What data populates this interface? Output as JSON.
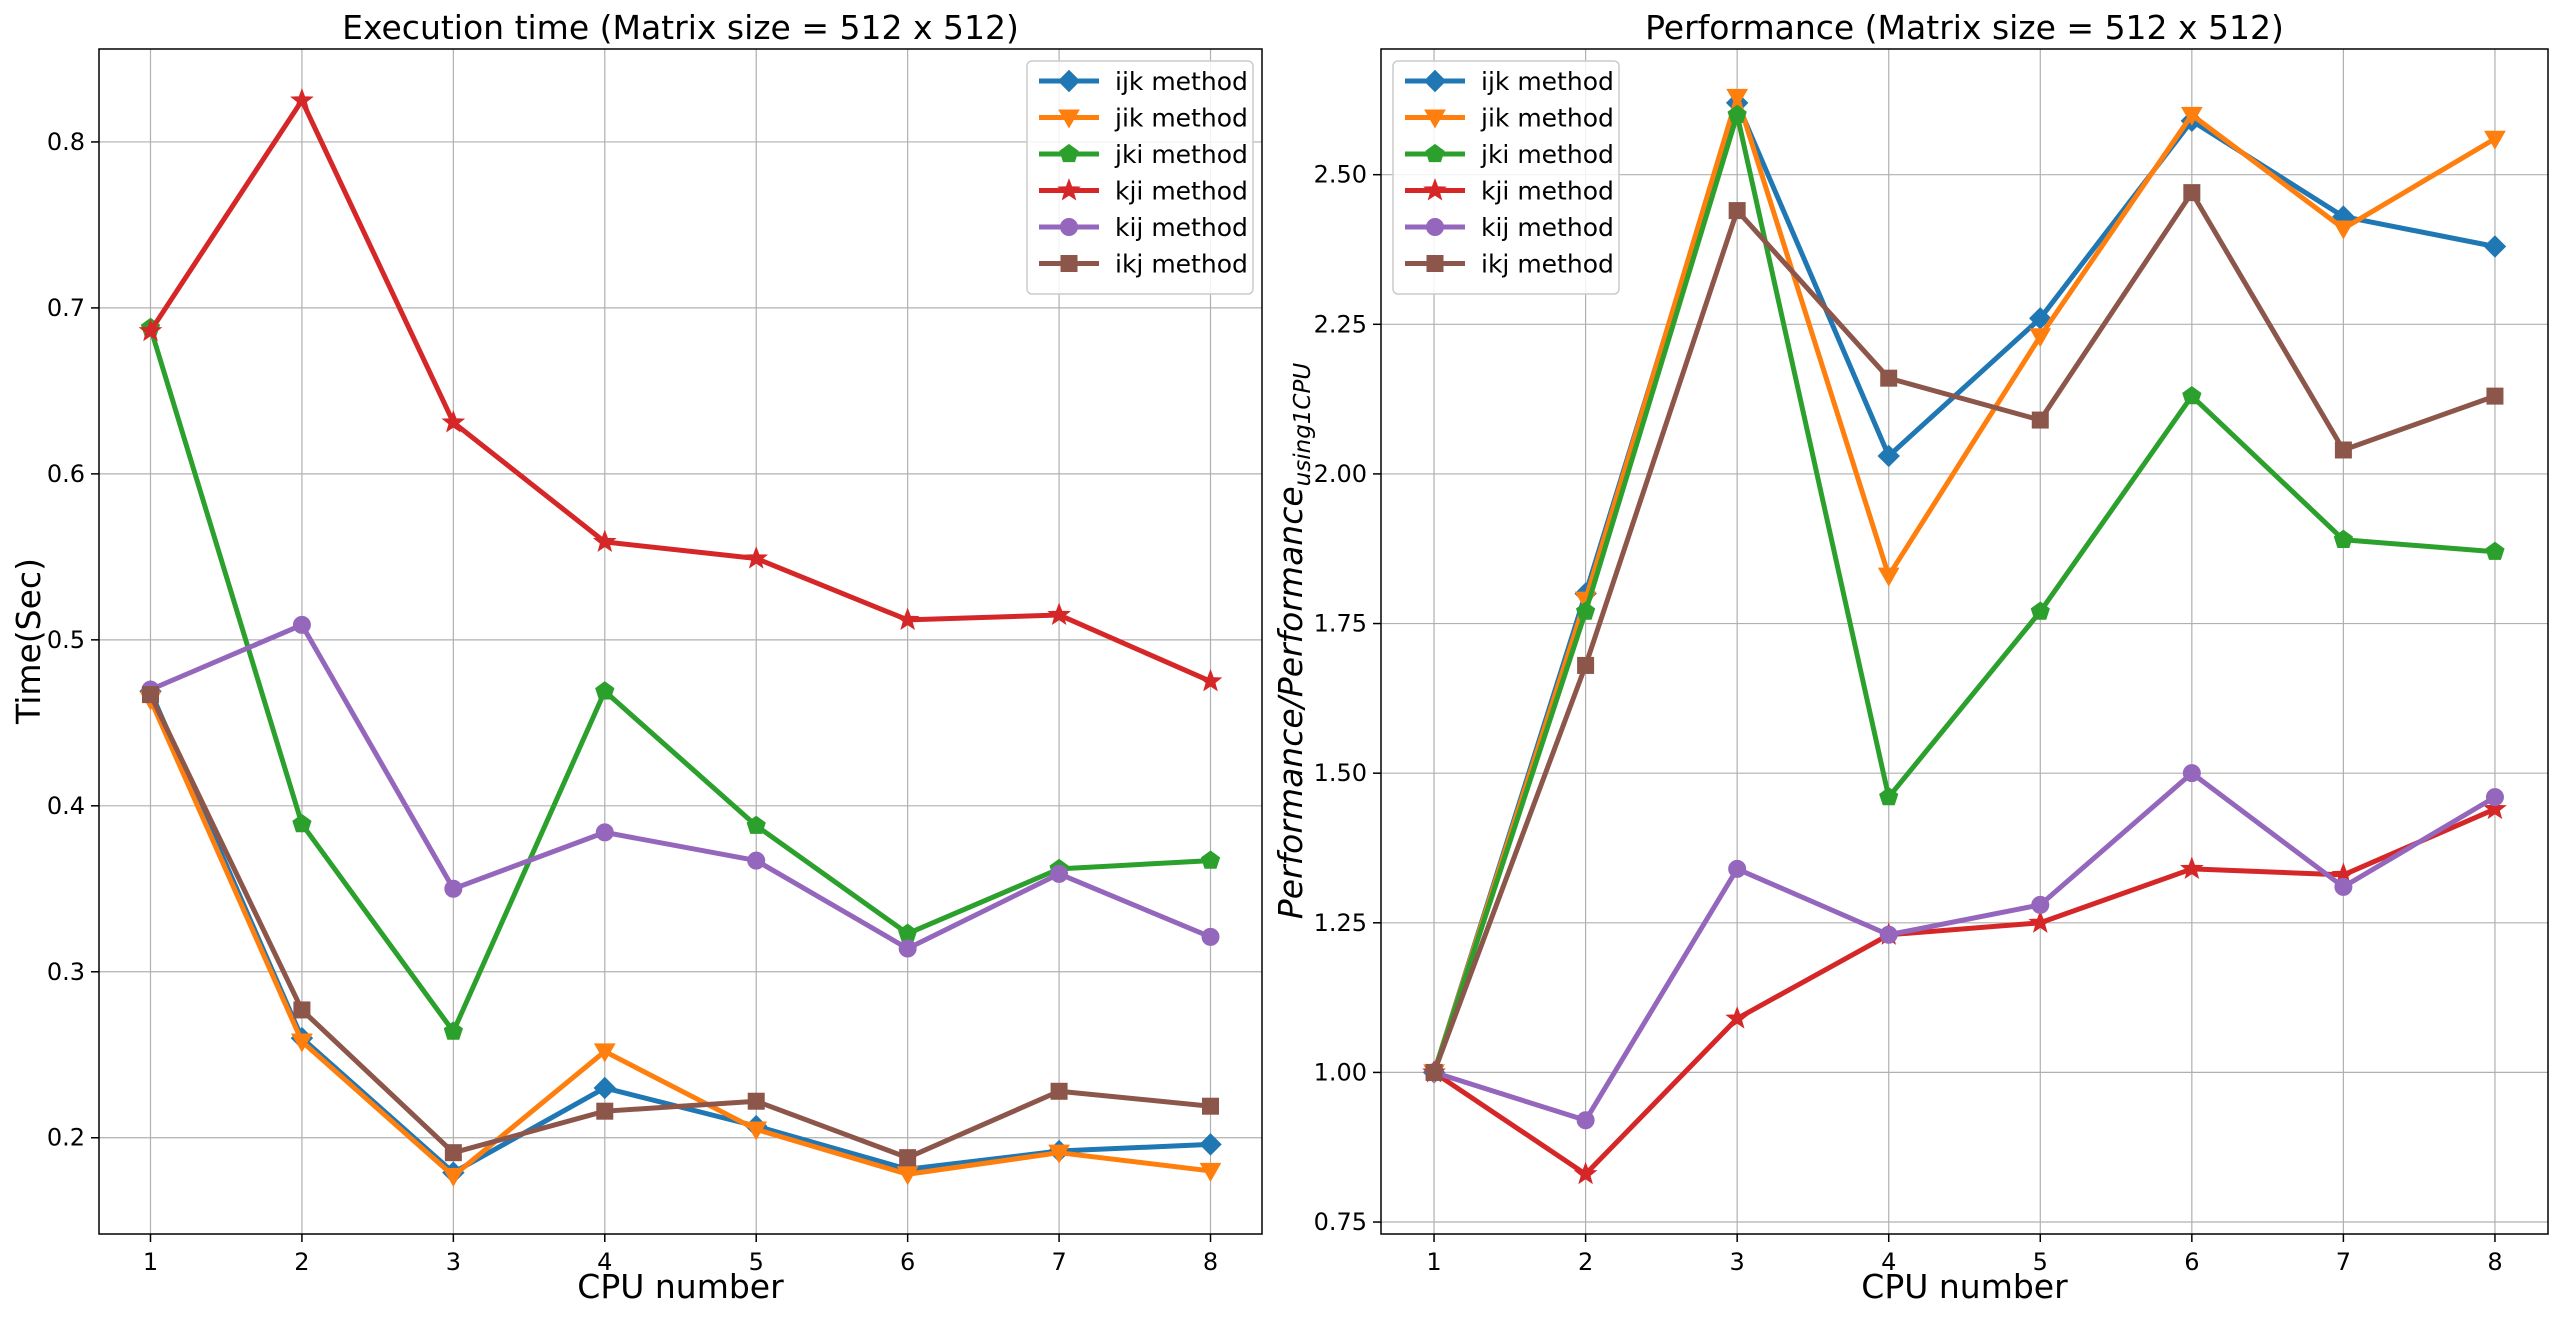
{
  "chart_data": [
    {
      "type": "line",
      "title": "Execution time (Matrix size = 512 x 512)",
      "xlabel": "CPU number",
      "ylabel": "Time(Sec)",
      "x": [
        1,
        2,
        3,
        4,
        5,
        6,
        7,
        8
      ],
      "xlim": [
        0.66,
        8.34
      ],
      "ylim": [
        0.142,
        0.856
      ],
      "xticks": [
        "1",
        "2",
        "3",
        "4",
        "5",
        "6",
        "7",
        "8"
      ],
      "yticks": [
        "0.2",
        "0.3",
        "0.4",
        "0.5",
        "0.6",
        "0.7",
        "0.8"
      ],
      "grid": true,
      "legend_position": "top-right",
      "series": [
        {
          "name": "ijk method",
          "marker": "diamond",
          "color": "#1f77b4",
          "values": [
            0.469,
            0.26,
            0.179,
            0.23,
            0.207,
            0.181,
            0.192,
            0.196
          ]
        },
        {
          "name": "jik method",
          "marker": "triangle-down",
          "color": "#ff7f0e",
          "values": [
            0.464,
            0.258,
            0.177,
            0.252,
            0.205,
            0.178,
            0.191,
            0.18
          ]
        },
        {
          "name": "jki method",
          "marker": "pentagon",
          "color": "#2ca02c",
          "values": [
            0.688,
            0.389,
            0.264,
            0.469,
            0.388,
            0.323,
            0.362,
            0.367
          ]
        },
        {
          "name": "kji method",
          "marker": "star",
          "color": "#d62728",
          "values": [
            0.686,
            0.825,
            0.631,
            0.559,
            0.549,
            0.512,
            0.515,
            0.475
          ]
        },
        {
          "name": "kij method",
          "marker": "circle",
          "color": "#9467bd",
          "values": [
            0.47,
            0.509,
            0.35,
            0.384,
            0.367,
            0.314,
            0.359,
            0.321
          ]
        },
        {
          "name": "ikj method",
          "marker": "square",
          "color": "#8c564b",
          "values": [
            0.467,
            0.277,
            0.191,
            0.216,
            0.222,
            0.188,
            0.228,
            0.219
          ]
        }
      ]
    },
    {
      "type": "line",
      "title": "Performance (Matrix size = 512 x 512)",
      "xlabel": "CPU number",
      "ylabel": "Performance/Performance",
      "ylabel_sub": "using1CPU",
      "x": [
        1,
        2,
        3,
        4,
        5,
        6,
        7,
        8
      ],
      "xlim": [
        0.65,
        8.35
      ],
      "ylim": [
        0.73,
        2.71
      ],
      "xticks": [
        "1",
        "2",
        "3",
        "4",
        "5",
        "6",
        "7",
        "8"
      ],
      "yticks": [
        "0.75",
        "1.00",
        "1.25",
        "1.50",
        "1.75",
        "2.00",
        "2.25",
        "2.50"
      ],
      "grid": true,
      "legend_position": "top-left",
      "series": [
        {
          "name": "ijk method",
          "marker": "diamond",
          "color": "#1f77b4",
          "values": [
            1.0,
            1.8,
            2.62,
            2.03,
            2.26,
            2.59,
            2.43,
            2.38
          ]
        },
        {
          "name": "jik method",
          "marker": "triangle-down",
          "color": "#ff7f0e",
          "values": [
            1.0,
            1.79,
            2.63,
            1.83,
            2.23,
            2.6,
            2.41,
            2.56
          ]
        },
        {
          "name": "jki method",
          "marker": "pentagon",
          "color": "#2ca02c",
          "values": [
            1.0,
            1.77,
            2.6,
            1.46,
            1.77,
            2.13,
            1.89,
            1.87
          ]
        },
        {
          "name": "kji method",
          "marker": "star",
          "color": "#d62728",
          "values": [
            1.0,
            0.83,
            1.09,
            1.23,
            1.25,
            1.34,
            1.33,
            1.44
          ]
        },
        {
          "name": "kij method",
          "marker": "circle",
          "color": "#9467bd",
          "values": [
            1.0,
            0.92,
            1.34,
            1.23,
            1.28,
            1.5,
            1.31,
            1.46
          ]
        },
        {
          "name": "ikj method",
          "marker": "square",
          "color": "#8c564b",
          "values": [
            1.0,
            1.68,
            2.44,
            2.16,
            2.09,
            2.47,
            2.04,
            2.13
          ]
        }
      ]
    }
  ]
}
